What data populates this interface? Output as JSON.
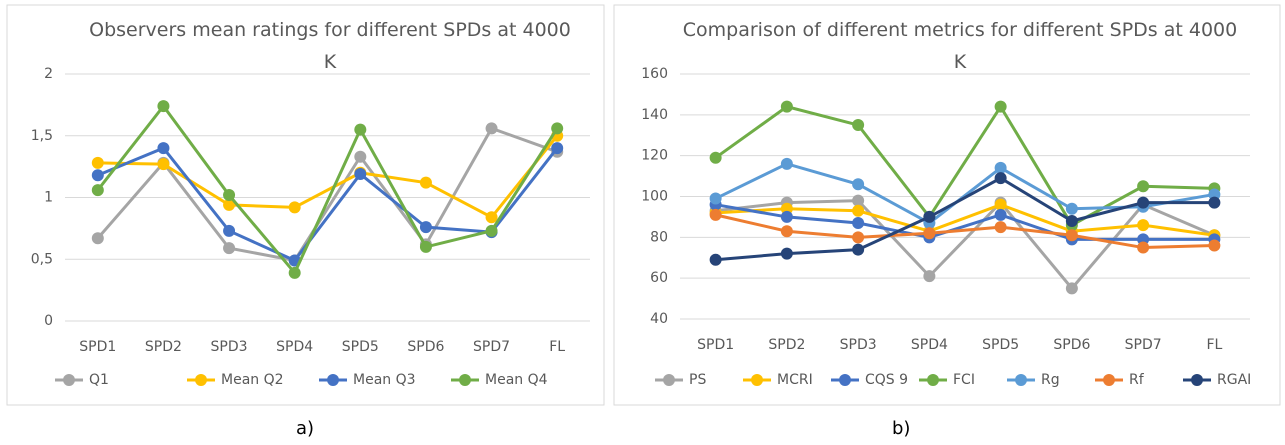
{
  "chart_data": [
    {
      "type": "line",
      "title": "Observers mean ratings for different SPDs at 4000 K",
      "caption": "a)",
      "categories": [
        "SPD1",
        "SPD2",
        "SPD3",
        "SPD4",
        "SPD5",
        "SPD6",
        "SPD7",
        "FL"
      ],
      "ylim": [
        0,
        2
      ],
      "yticks": [
        0,
        {
          "value": 0.5,
          "label": "0,5"
        },
        1,
        {
          "value": 1.5,
          "label": "1,5"
        },
        2
      ],
      "grid": true,
      "series": [
        {
          "name": "Q1",
          "color": "#a5a5a5",
          "values": [
            0.67,
            1.28,
            0.59,
            0.49,
            1.33,
            0.62,
            1.56,
            1.37
          ]
        },
        {
          "name": "Mean Q2",
          "color": "#ffc000",
          "values": [
            1.28,
            1.27,
            0.94,
            0.92,
            1.2,
            1.12,
            0.84,
            1.5
          ]
        },
        {
          "name": "Mean Q3",
          "color": "#4472c4",
          "values": [
            1.18,
            1.4,
            0.73,
            0.49,
            1.19,
            0.76,
            0.72,
            1.4
          ]
        },
        {
          "name": "Mean Q4",
          "color": "#70ad47",
          "values": [
            1.06,
            1.74,
            1.02,
            0.39,
            1.55,
            0.6,
            0.73,
            1.56
          ]
        }
      ]
    },
    {
      "type": "line",
      "title": "Comparison of different metrics for different  SPDs at 4000 K",
      "caption": "b)",
      "categories": [
        "SPD1",
        "SPD2",
        "SPD3",
        "SPD4",
        "SPD5",
        "SPD6",
        "SPD7",
        "FL"
      ],
      "ylim": [
        40,
        160
      ],
      "yticks": [
        40,
        60,
        80,
        100,
        120,
        140,
        160
      ],
      "grid": true,
      "series": [
        {
          "name": "PS",
          "color": "#a5a5a5",
          "values": [
            93,
            97,
            98,
            61,
            97,
            55,
            96,
            81
          ]
        },
        {
          "name": "MCRI",
          "color": "#ffc000",
          "values": [
            92,
            94,
            93,
            83,
            96,
            83,
            86,
            81
          ]
        },
        {
          "name": "CQS 9",
          "color": "#4472c4",
          "values": [
            96,
            90,
            87,
            80,
            91,
            79,
            79,
            79
          ]
        },
        {
          "name": "FCI",
          "color": "#70ad47",
          "values": [
            119,
            144,
            135,
            90,
            144,
            86,
            105,
            104
          ]
        },
        {
          "name": "Rg",
          "color": "#5b9bd5",
          "values": [
            99,
            116,
            106,
            87,
            114,
            94,
            95,
            101
          ]
        },
        {
          "name": "Rf",
          "color": "#ed7d31",
          "values": [
            91,
            83,
            80,
            82,
            85,
            81,
            75,
            76
          ]
        },
        {
          "name": "RGAI",
          "color": "#264478",
          "values": [
            69,
            72,
            74,
            90,
            109,
            88,
            97,
            97
          ]
        }
      ]
    }
  ]
}
